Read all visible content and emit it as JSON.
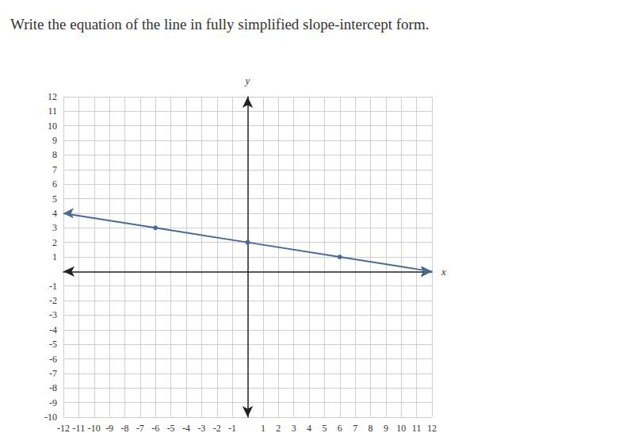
{
  "chart_data": {
    "type": "line",
    "title": "Write the equation of the line in fully simplified slope-intercept form.",
    "x_label": "x",
    "y_label": "y",
    "x": [
      -12,
      -6,
      0,
      6,
      12
    ],
    "values": [
      4,
      3,
      2,
      1,
      0
    ],
    "color": "#4a6a9a",
    "marker": "circle",
    "grid": true,
    "xlim": [
      -12,
      12
    ],
    "xticks": [
      -12,
      -11,
      -10,
      -9,
      -8,
      -7,
      -6,
      -5,
      -4,
      -3,
      -2,
      -1,
      1,
      2,
      3,
      4,
      5,
      6,
      7,
      8,
      9,
      10,
      11,
      12
    ],
    "ylim": [
      -10,
      12
    ],
    "yticks": [
      -10,
      -9,
      -8,
      -7,
      -6,
      -5,
      -4,
      -3,
      -2,
      -1,
      1,
      2,
      3,
      4,
      5,
      6,
      7,
      8,
      9,
      10,
      11,
      12
    ]
  }
}
